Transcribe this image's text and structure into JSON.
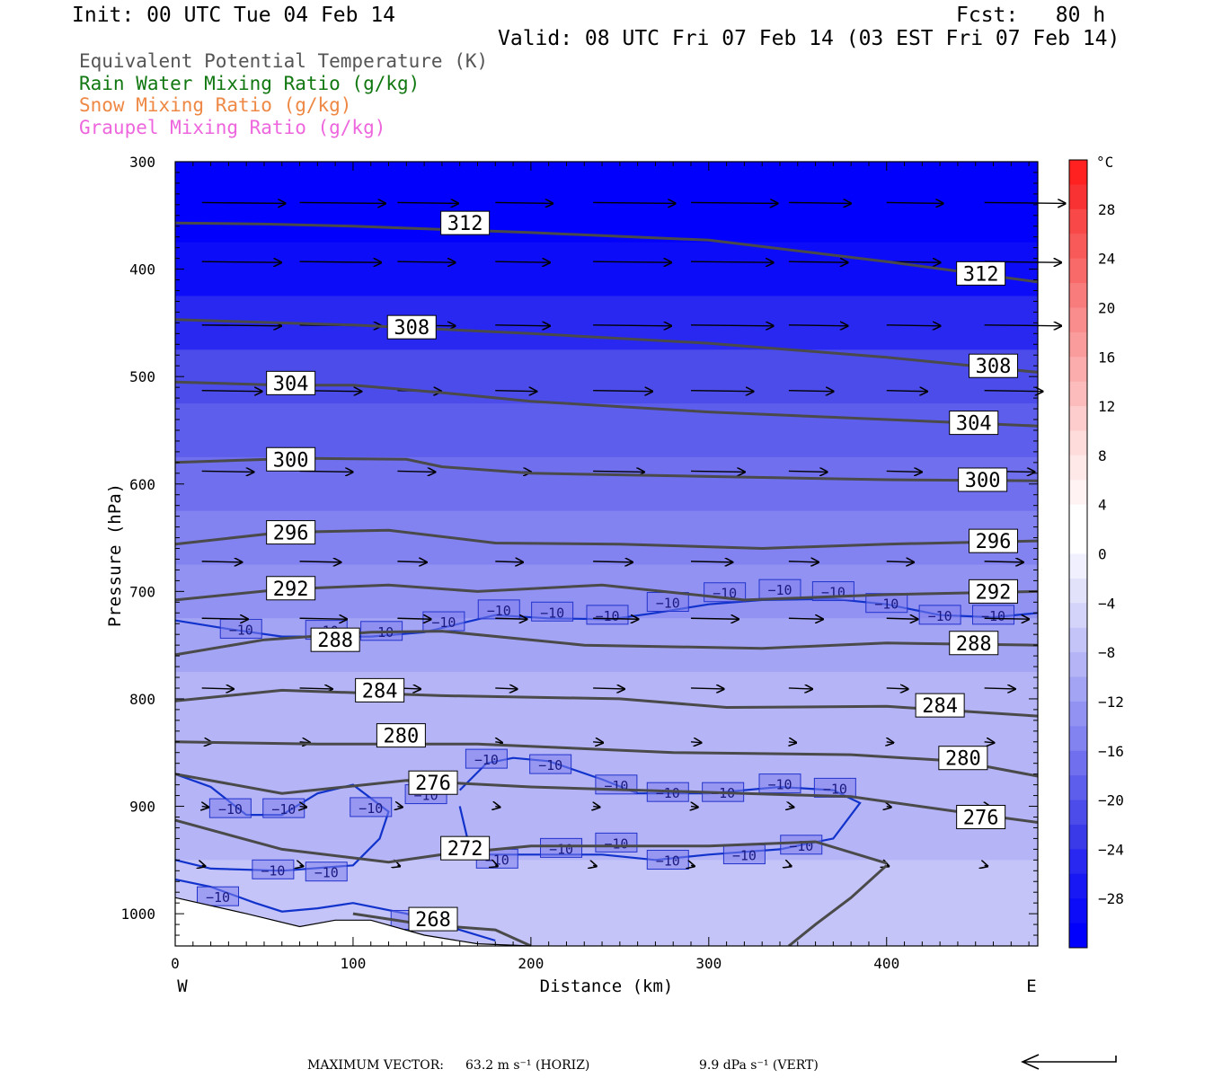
{
  "header": {
    "init": "Init: 00 UTC Tue 04 Feb 14",
    "fcst": "Fcst:   80 h",
    "valid": "Valid: 08 UTC Fri 07 Feb 14 (03 EST Fri 07 Feb 14)"
  },
  "fields": [
    {
      "label": "Equivalent Potential Temperature (K)",
      "color": "#555555"
    },
    {
      "label": "Rain Water Mixing Ratio (g/kg)",
      "color": "#117711"
    },
    {
      "label": "Snow Mixing Ratio (g/kg)",
      "color": "#ee8844"
    },
    {
      "label": "Graupel Mixing Ratio (g/kg)",
      "color": "#ee66dd"
    }
  ],
  "footer": {
    "max_vector_label": "MAXIMUM VECTOR:",
    "horiz": "63.2 m s⁻¹ (HORIZ)",
    "vert": "9.9 dPa s⁻¹ (VERT)"
  },
  "chart_data": {
    "type": "contour",
    "x_axis": {
      "label": "Distance (km)",
      "range": [
        0,
        485
      ],
      "ticks": [
        0,
        100,
        200,
        300,
        400
      ],
      "left_label": "W",
      "right_label": "E"
    },
    "y_axis": {
      "label": "Pressure (hPa)",
      "range": [
        300,
        1030
      ],
      "ticks": [
        300,
        400,
        500,
        600,
        700,
        800,
        900,
        1000
      ],
      "inverted": true
    },
    "colorbar": {
      "unit": "°C",
      "labels": [
        28,
        24,
        20,
        16,
        12,
        8,
        4,
        0,
        -4,
        -8,
        -12,
        -16,
        -20,
        -24,
        -28
      ],
      "range": [
        -32,
        32
      ],
      "step": 2,
      "colors_warm": [
        "#ff2020",
        "#f83232",
        "#f84848",
        "#f85a5a",
        "#f86a6a",
        "#f87c7c",
        "#f98c8c",
        "#fa9c9c",
        "#fbacac",
        "#fcbcbc",
        "#fdcccc",
        "#fedcdc",
        "#fee8e8",
        "#fff3f3",
        "#ffffff",
        "#ffffff"
      ],
      "colors_cold": [
        "#f0f0fe",
        "#e2e2fb",
        "#d4d4fa",
        "#c4c4f8",
        "#b4b4f6",
        "#a4a4f4",
        "#9292f2",
        "#8282f0",
        "#7070ee",
        "#5e5eec",
        "#4c4cea",
        "#3a3ae8",
        "#2828f0",
        "#1818f4",
        "#0c0cf8",
        "#0000fc"
      ]
    },
    "background_temperature": [
      [
        300,
        -31
      ],
      [
        350,
        -30
      ],
      [
        400,
        -28
      ],
      [
        450,
        -25
      ],
      [
        500,
        -21
      ],
      [
        550,
        -19
      ],
      [
        600,
        -17
      ],
      [
        650,
        -15
      ],
      [
        700,
        -13
      ],
      [
        750,
        -11
      ],
      [
        800,
        -9
      ],
      [
        900,
        -8
      ],
      [
        1000,
        -7
      ]
    ],
    "theta_e_contours": [
      {
        "value": 312,
        "points": [
          [
            0,
            357
          ],
          [
            50,
            358
          ],
          [
            100,
            360
          ],
          [
            200,
            366
          ],
          [
            300,
            373
          ],
          [
            400,
            393
          ],
          [
            485,
            412
          ]
        ],
        "labels": [
          [
            163,
            357
          ],
          [
            453,
            404
          ]
        ]
      },
      {
        "value": 308,
        "points": [
          [
            0,
            447
          ],
          [
            100,
            452
          ],
          [
            200,
            460
          ],
          [
            300,
            469
          ],
          [
            400,
            482
          ],
          [
            485,
            496
          ]
        ],
        "labels": [
          [
            133,
            454
          ],
          [
            460,
            490
          ]
        ]
      },
      {
        "value": 304,
        "points": [
          [
            0,
            505
          ],
          [
            60,
            508
          ],
          [
            100,
            508
          ],
          [
            150,
            515
          ],
          [
            200,
            523
          ],
          [
            300,
            533
          ],
          [
            400,
            540
          ],
          [
            485,
            546
          ]
        ],
        "labels": [
          [
            65,
            506
          ],
          [
            449,
            543
          ]
        ]
      },
      {
        "value": 300,
        "points": [
          [
            0,
            580
          ],
          [
            70,
            576
          ],
          [
            130,
            577
          ],
          [
            150,
            584
          ],
          [
            200,
            590
          ],
          [
            300,
            593
          ],
          [
            400,
            596
          ],
          [
            485,
            597
          ]
        ],
        "labels": [
          [
            65,
            577
          ],
          [
            454,
            596
          ]
        ]
      },
      {
        "value": 296,
        "points": [
          [
            0,
            656
          ],
          [
            60,
            645
          ],
          [
            120,
            643
          ],
          [
            180,
            655
          ],
          [
            250,
            656
          ],
          [
            330,
            660
          ],
          [
            400,
            656
          ],
          [
            485,
            653
          ]
        ],
        "labels": [
          [
            65,
            645
          ],
          [
            460,
            653
          ]
        ]
      },
      {
        "value": 292,
        "points": [
          [
            0,
            708
          ],
          [
            60,
            698
          ],
          [
            120,
            694
          ],
          [
            170,
            700
          ],
          [
            240,
            694
          ],
          [
            320,
            708
          ],
          [
            400,
            703
          ],
          [
            485,
            700
          ]
        ],
        "labels": [
          [
            65,
            697
          ],
          [
            460,
            700
          ]
        ]
      },
      {
        "value": 288,
        "points": [
          [
            0,
            759
          ],
          [
            50,
            745
          ],
          [
            110,
            738
          ],
          [
            150,
            737
          ],
          [
            230,
            750
          ],
          [
            330,
            753
          ],
          [
            400,
            748
          ],
          [
            485,
            750
          ]
        ],
        "labels": [
          [
            90,
            745
          ],
          [
            449,
            748
          ]
        ]
      },
      {
        "value": 284,
        "points": [
          [
            0,
            802
          ],
          [
            60,
            792
          ],
          [
            150,
            797
          ],
          [
            250,
            800
          ],
          [
            310,
            808
          ],
          [
            400,
            807
          ],
          [
            485,
            816
          ]
        ],
        "labels": [
          [
            115,
            792
          ],
          [
            430,
            806
          ]
        ]
      },
      {
        "value": 280,
        "points": [
          [
            0,
            840
          ],
          [
            80,
            842
          ],
          [
            170,
            842
          ],
          [
            280,
            850
          ],
          [
            380,
            852
          ],
          [
            440,
            858
          ],
          [
            485,
            872
          ]
        ],
        "labels": [
          [
            127,
            834
          ],
          [
            443,
            855
          ]
        ]
      },
      {
        "value": 276,
        "points": [
          [
            0,
            870
          ],
          [
            60,
            888
          ],
          [
            130,
            876
          ],
          [
            200,
            882
          ],
          [
            300,
            887
          ],
          [
            380,
            891
          ],
          [
            440,
            905
          ],
          [
            485,
            915
          ]
        ],
        "labels": [
          [
            145,
            878
          ],
          [
            453,
            910
          ]
        ]
      },
      {
        "value": 272,
        "points": [
          [
            0,
            913
          ],
          [
            60,
            940
          ],
          [
            120,
            952
          ],
          [
            150,
            945
          ],
          [
            200,
            937
          ],
          [
            300,
            937
          ],
          [
            360,
            933
          ],
          [
            400,
            953
          ]
        ],
        "labels": [
          [
            163,
            939
          ]
        ]
      },
      {
        "value": 268,
        "points": [
          [
            100,
            1000
          ],
          [
            140,
            1010
          ],
          [
            180,
            1015
          ],
          [
            200,
            1030
          ]
        ],
        "labels": [
          [
            145,
            1005
          ]
        ]
      }
    ],
    "temperature_contour": {
      "value": -10,
      "color": "#1133cc"
    },
    "wind_vectors": {
      "max_horizontal": 63.2,
      "max_vertical": 9.9
    }
  }
}
